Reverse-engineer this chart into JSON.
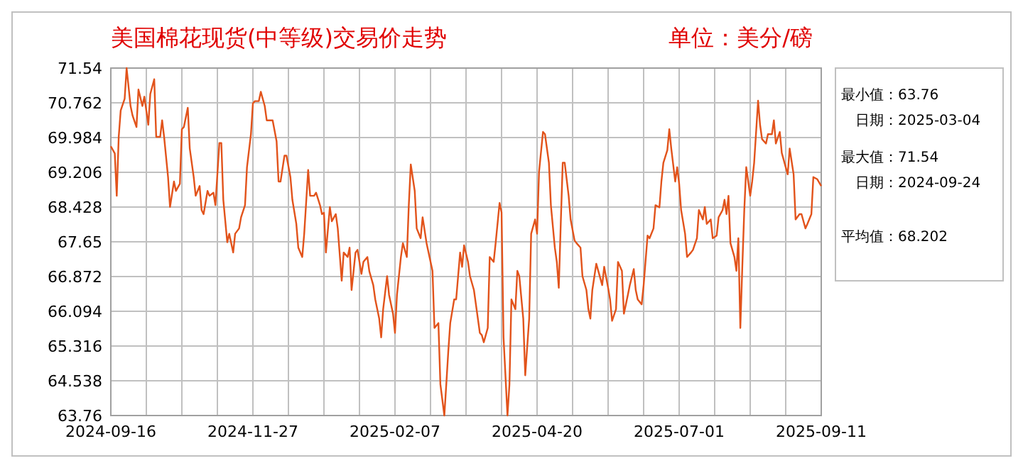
{
  "chart_data": {
    "type": "line",
    "title": "美国棉花现货(中等级)交易价走势",
    "subtitle": "单位：美分/磅",
    "annotations": [
      "最小值：63.76",
      "日期：2025-03-04",
      "最大值：71.54",
      "日期：2024-09-24",
      "平均值：68.202"
    ],
    "xlim": [
      "2024-09-16",
      "2025-09-11"
    ],
    "xticks": [
      {
        "value": "2024-09-16",
        "label": "2024-09-16"
      },
      {
        "value": "2024-10-04",
        "label": null
      },
      {
        "value": "2024-10-22",
        "label": null
      },
      {
        "value": "2024-11-09",
        "label": null
      },
      {
        "value": "2024-11-27",
        "label": "2024-11-27"
      },
      {
        "value": "2024-12-15",
        "label": null
      },
      {
        "value": "2025-01-02",
        "label": null
      },
      {
        "value": "2025-01-20",
        "label": null
      },
      {
        "value": "2025-02-07",
        "label": "2025-02-07"
      },
      {
        "value": "2025-02-25",
        "label": null
      },
      {
        "value": "2025-03-15",
        "label": null
      },
      {
        "value": "2025-04-02",
        "label": null
      },
      {
        "value": "2025-04-20",
        "label": "2025-04-20"
      },
      {
        "value": "2025-05-08",
        "label": null
      },
      {
        "value": "2025-05-26",
        "label": null
      },
      {
        "value": "2025-06-13",
        "label": null
      },
      {
        "value": "2025-07-01",
        "label": "2025-07-01"
      },
      {
        "value": "2025-07-19",
        "label": null
      },
      {
        "value": "2025-08-06",
        "label": null
      },
      {
        "value": "2025-08-24",
        "label": null
      },
      {
        "value": "2025-09-11",
        "label": "2025-09-11"
      }
    ],
    "ylim": [
      63.76,
      71.54
    ],
    "yticks": [
      63.76,
      64.538,
      65.316,
      66.094,
      66.872,
      67.65,
      68.428,
      69.206,
      69.984,
      70.762,
      71.54
    ],
    "grid": true,
    "marker": "none",
    "line_style": "solid",
    "x": [
      "2024-09-16",
      "2024-09-18",
      "2024-09-19",
      "2024-09-20",
      "2024-09-21",
      "2024-09-23",
      "2024-09-24",
      "2024-09-26",
      "2024-09-27",
      "2024-09-29",
      "2024-09-30",
      "2024-10-02",
      "2024-10-03",
      "2024-10-05",
      "2024-10-06",
      "2024-10-08",
      "2024-10-09",
      "2024-10-11",
      "2024-10-12",
      "2024-10-13",
      "2024-10-15",
      "2024-10-16",
      "2024-10-18",
      "2024-10-19",
      "2024-10-21",
      "2024-10-22",
      "2024-10-23",
      "2024-10-25",
      "2024-10-26",
      "2024-10-28",
      "2024-10-29",
      "2024-10-31",
      "2024-11-01",
      "2024-11-02",
      "2024-11-04",
      "2024-11-05",
      "2024-11-07",
      "2024-11-08",
      "2024-11-10",
      "2024-11-11",
      "2024-11-12",
      "2024-11-14",
      "2024-11-15",
      "2024-11-17",
      "2024-11-18",
      "2024-11-20",
      "2024-11-21",
      "2024-11-23",
      "2024-11-24",
      "2024-11-26",
      "2024-11-27",
      "2024-11-28",
      "2024-11-30",
      "2024-12-01",
      "2024-12-03",
      "2024-12-04",
      "2024-12-06",
      "2024-12-07",
      "2024-12-09",
      "2024-12-10",
      "2024-12-11",
      "2024-12-13",
      "2024-12-14",
      "2024-12-16",
      "2024-12-17",
      "2024-12-19",
      "2024-12-20",
      "2024-12-22",
      "2024-12-23",
      "2024-12-25",
      "2024-12-26",
      "2024-12-28",
      "2024-12-29",
      "2024-12-31",
      "2025-01-01",
      "2025-01-02",
      "2025-01-03",
      "2025-01-05",
      "2025-01-06",
      "2025-01-08",
      "2025-01-09",
      "2025-01-11",
      "2025-01-12",
      "2025-01-14",
      "2025-01-15",
      "2025-01-16",
      "2025-01-18",
      "2025-01-19",
      "2025-01-21",
      "2025-01-22",
      "2025-01-24",
      "2025-01-25",
      "2025-01-27",
      "2025-01-28",
      "2025-01-30",
      "2025-01-31",
      "2025-02-01",
      "2025-02-03",
      "2025-02-04",
      "2025-02-06",
      "2025-02-07",
      "2025-02-08",
      "2025-02-10",
      "2025-02-11",
      "2025-02-13",
      "2025-02-14",
      "2025-02-15",
      "2025-02-17",
      "2025-02-18",
      "2025-02-20",
      "2025-02-21",
      "2025-02-23",
      "2025-02-24",
      "2025-02-26",
      "2025-02-27",
      "2025-03-01",
      "2025-03-02",
      "2025-03-04",
      "2025-03-05",
      "2025-03-06",
      "2025-03-07",
      "2025-03-09",
      "2025-03-10",
      "2025-03-12",
      "2025-03-13",
      "2025-03-14",
      "2025-03-16",
      "2025-03-17",
      "2025-03-19",
      "2025-03-20",
      "2025-03-22",
      "2025-03-23",
      "2025-03-24",
      "2025-03-26",
      "2025-03-27",
      "2025-03-29",
      "2025-03-30",
      "2025-04-01",
      "2025-04-02",
      "2025-04-03",
      "2025-04-05",
      "2025-04-06",
      "2025-04-07",
      "2025-04-09",
      "2025-04-10",
      "2025-04-11",
      "2025-04-13",
      "2025-04-14",
      "2025-04-16",
      "2025-04-17",
      "2025-04-19",
      "2025-04-20",
      "2025-04-21",
      "2025-04-23",
      "2025-04-24",
      "2025-04-26",
      "2025-04-27",
      "2025-04-29",
      "2025-04-30",
      "2025-05-01",
      "2025-05-02",
      "2025-05-03",
      "2025-05-04",
      "2025-05-06",
      "2025-05-07",
      "2025-05-09",
      "2025-05-10",
      "2025-05-12",
      "2025-05-13",
      "2025-05-15",
      "2025-05-16",
      "2025-05-17",
      "2025-05-18",
      "2025-05-20",
      "2025-05-21",
      "2025-05-23",
      "2025-05-24",
      "2025-05-26",
      "2025-05-27",
      "2025-05-28",
      "2025-05-30",
      "2025-05-31",
      "2025-06-02",
      "2025-06-03",
      "2025-06-05",
      "2025-06-06",
      "2025-06-08",
      "2025-06-09",
      "2025-06-10",
      "2025-06-12",
      "2025-06-13",
      "2025-06-15",
      "2025-06-16",
      "2025-06-18",
      "2025-06-19",
      "2025-06-21",
      "2025-06-22",
      "2025-06-23",
      "2025-06-25",
      "2025-06-26",
      "2025-06-27",
      "2025-06-29",
      "2025-06-30",
      "2025-07-01",
      "2025-07-02",
      "2025-07-04",
      "2025-07-05",
      "2025-07-07",
      "2025-07-08",
      "2025-07-10",
      "2025-07-11",
      "2025-07-13",
      "2025-07-14",
      "2025-07-15",
      "2025-07-17",
      "2025-07-18",
      "2025-07-20",
      "2025-07-21",
      "2025-07-23",
      "2025-07-24",
      "2025-07-25",
      "2025-07-26",
      "2025-07-27",
      "2025-07-29",
      "2025-07-30",
      "2025-07-31",
      "2025-08-01",
      "2025-08-02",
      "2025-08-03",
      "2025-08-04",
      "2025-08-05",
      "2025-08-06",
      "2025-08-07",
      "2025-08-08",
      "2025-08-10",
      "2025-08-11",
      "2025-08-12",
      "2025-08-14",
      "2025-08-15",
      "2025-08-17",
      "2025-08-18",
      "2025-08-19",
      "2025-08-21",
      "2025-08-22",
      "2025-08-24",
      "2025-08-25",
      "2025-08-26",
      "2025-08-28",
      "2025-08-29",
      "2025-08-31",
      "2025-09-01",
      "2025-09-03",
      "2025-09-04",
      "2025-09-06",
      "2025-09-07",
      "2025-09-09",
      "2025-09-11"
    ],
    "series": [
      {
        "color": "#e2531b",
        "values": [
          69.79,
          69.63,
          68.68,
          70.0,
          70.59,
          70.85,
          71.54,
          70.69,
          70.48,
          70.22,
          71.06,
          70.69,
          70.9,
          70.27,
          70.96,
          71.29,
          70.0,
          70.0,
          70.37,
          70.0,
          69.1,
          68.43,
          69.0,
          68.79,
          68.95,
          70.17,
          70.22,
          70.65,
          69.74,
          69.1,
          68.68,
          68.9,
          68.36,
          68.27,
          68.79,
          68.68,
          68.75,
          68.47,
          69.86,
          69.86,
          68.59,
          67.64,
          67.83,
          67.41,
          67.83,
          67.95,
          68.2,
          68.47,
          69.32,
          70.06,
          70.75,
          70.8,
          70.8,
          71.01,
          70.69,
          70.37,
          70.37,
          70.37,
          69.9,
          69.0,
          69.0,
          69.58,
          69.58,
          69.1,
          68.59,
          68.05,
          67.52,
          67.31,
          67.83,
          69.26,
          68.68,
          68.68,
          68.75,
          68.47,
          68.27,
          68.3,
          67.41,
          68.43,
          68.11,
          68.27,
          67.95,
          66.78,
          67.41,
          67.31,
          67.52,
          66.57,
          67.41,
          67.47,
          66.93,
          67.2,
          67.31,
          66.99,
          66.68,
          66.36,
          65.93,
          65.51,
          66.14,
          66.88,
          66.46,
          66.04,
          65.61,
          66.46,
          67.31,
          67.62,
          67.31,
          68.47,
          69.38,
          68.79,
          67.95,
          67.73,
          68.2,
          67.62,
          67.41,
          67.0,
          65.72,
          65.83,
          64.46,
          63.76,
          64.46,
          65.19,
          65.83,
          66.36,
          66.36,
          67.41,
          67.09,
          67.57,
          67.2,
          66.88,
          66.57,
          66.25,
          65.61,
          65.56,
          65.4,
          65.72,
          67.31,
          67.2,
          67.62,
          68.52,
          68.31,
          65.51,
          63.76,
          64.46,
          66.36,
          66.14,
          67.0,
          66.88,
          65.93,
          64.66,
          65.93,
          67.83,
          68.15,
          67.83,
          69.22,
          70.11,
          70.06,
          69.42,
          68.47,
          67.52,
          67.2,
          66.62,
          68.05,
          69.42,
          69.42,
          68.68,
          68.15,
          67.68,
          67.62,
          67.52,
          66.88,
          66.57,
          66.14,
          65.93,
          66.57,
          67.16,
          67.0,
          66.68,
          67.09,
          66.62,
          66.36,
          65.88,
          66.14,
          67.2,
          67.0,
          66.04,
          66.46,
          66.68,
          67.04,
          66.57,
          66.36,
          66.25,
          66.68,
          67.79,
          67.73,
          67.95,
          68.47,
          68.42,
          69.0,
          69.42,
          69.7,
          70.17,
          69.74,
          69.0,
          69.32,
          68.95,
          68.36,
          67.83,
          67.31,
          67.41,
          67.47,
          67.73,
          68.36,
          68.15,
          68.43,
          68.05,
          68.15,
          67.73,
          67.79,
          68.2,
          68.36,
          68.59,
          68.27,
          68.68,
          67.62,
          67.31,
          67.0,
          67.73,
          65.72,
          67.09,
          68.36,
          69.32,
          69.0,
          68.68,
          69.0,
          69.42,
          70.81,
          70.27,
          69.95,
          69.85,
          70.06,
          70.06,
          70.37,
          69.85,
          70.11,
          69.64,
          69.32,
          69.16,
          69.74,
          69.16,
          68.15,
          68.27,
          68.27,
          67.95,
          68.05,
          68.27,
          69.1,
          69.05,
          68.9
        ]
      }
    ]
  }
}
